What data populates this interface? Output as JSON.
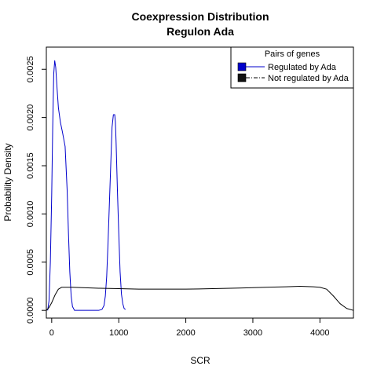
{
  "chart_data": {
    "type": "line",
    "title": "Coexpression Distribution",
    "subtitle": "Regulon Ada",
    "xlabel": "SCR",
    "ylabel": "Probability Density",
    "xlim": [
      -80,
      4500
    ],
    "ylim": [
      -8e-05,
      0.00273
    ],
    "x_ticks": [
      0,
      1000,
      2000,
      3000,
      4000
    ],
    "y_ticks": [
      0.0,
      0.0005,
      0.001,
      0.0015,
      0.002,
      0.0025
    ],
    "y_tick_labels": [
      "0.0000",
      "0.0005",
      "0.0010",
      "0.0015",
      "0.0020",
      "0.0025"
    ],
    "grid": false,
    "legend": {
      "title": "Pairs of genes",
      "position": "top-right"
    },
    "series": [
      {
        "name": "Regulated by  Ada",
        "color": "#0000cc",
        "line": "solid",
        "x": [
          -60,
          -40,
          -20,
          0,
          15,
          30,
          45,
          60,
          80,
          100,
          130,
          160,
          200,
          230,
          250,
          270,
          290,
          310,
          340,
          370,
          400,
          500,
          600,
          700,
          750,
          780,
          800,
          820,
          840,
          860,
          880,
          900,
          920,
          940,
          950,
          960,
          980,
          1000,
          1020,
          1040,
          1060,
          1080,
          1100
        ],
        "y": [
          0.0,
          0.0001,
          0.0005,
          0.0012,
          0.0019,
          0.00245,
          0.00259,
          0.00252,
          0.0023,
          0.0021,
          0.00195,
          0.00185,
          0.0017,
          0.00125,
          0.0008,
          0.0004,
          0.00015,
          4e-05,
          0.0,
          0.0,
          0.0,
          0.0,
          0.0,
          0.0,
          1e-05,
          5e-05,
          0.00015,
          0.00035,
          0.0007,
          0.0011,
          0.0015,
          0.0019,
          0.00203,
          0.00203,
          0.00195,
          0.00175,
          0.00125,
          0.0008,
          0.0004,
          0.00017,
          7e-05,
          2e-05,
          1e-05
        ]
      },
      {
        "name": "Not regulated by  Ada",
        "color": "#000000",
        "line": "solid",
        "x": [
          -80,
          -40,
          0,
          50,
          100,
          150,
          200,
          300,
          500,
          700,
          1000,
          1300,
          1600,
          2000,
          2400,
          2800,
          3200,
          3500,
          3700,
          3900,
          4000,
          4100,
          4200,
          4300,
          4400,
          4500
        ],
        "y": [
          0.0,
          3e-05,
          8e-05,
          0.00016,
          0.00022,
          0.00024,
          0.00024,
          0.00024,
          0.000235,
          0.00023,
          0.000225,
          0.00022,
          0.00022,
          0.00022,
          0.000225,
          0.000232,
          0.00024,
          0.000245,
          0.00025,
          0.000245,
          0.00024,
          0.00022,
          0.00015,
          7e-05,
          2e-05,
          0.0
        ]
      }
    ]
  }
}
